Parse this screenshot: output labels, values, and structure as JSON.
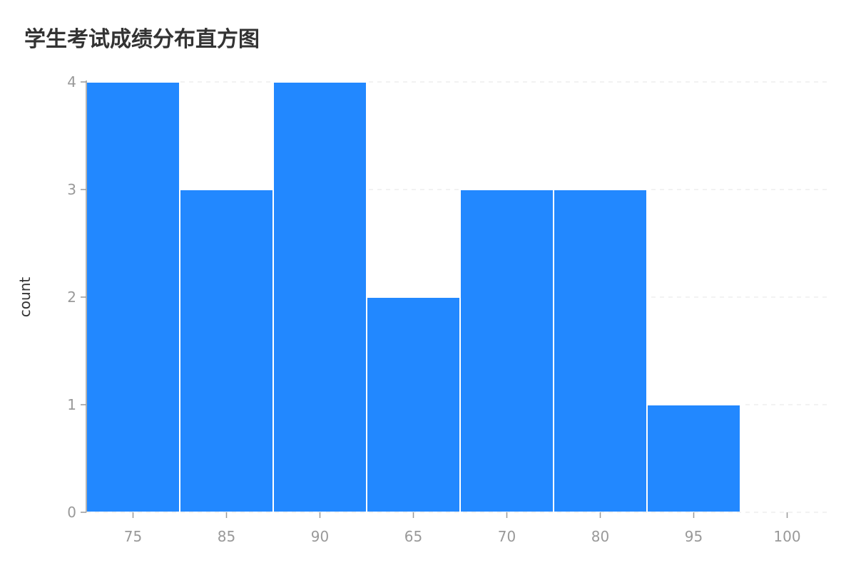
{
  "chart_data": {
    "type": "bar",
    "title": "学生考试成绩分布直方图",
    "xlabel": "",
    "ylabel": "count",
    "categories": [
      "75",
      "85",
      "90",
      "65",
      "70",
      "80",
      "95",
      "100"
    ],
    "values": [
      4,
      3,
      4,
      2,
      3,
      3,
      1,
      0
    ],
    "yticks": [
      0,
      1,
      2,
      3,
      4
    ],
    "ylim": [
      0,
      4
    ],
    "grid": true,
    "bar_color": "#2288ff",
    "grid_color": "#e6e6e6",
    "axis_color": "#999999"
  }
}
